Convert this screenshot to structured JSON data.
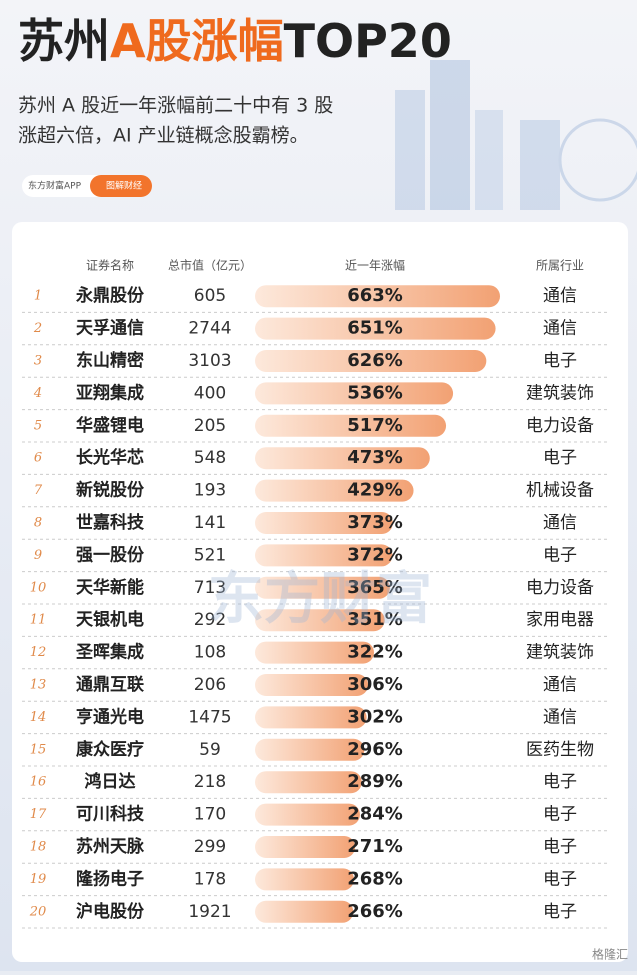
{
  "header": {
    "title": [
      "苏州",
      "A股涨幅",
      "TOP20"
    ],
    "subtitle": [
      "苏州 A 股近一年涨幅前二十中有 3 股",
      "涨超六倍，AI 产业链概念股霸榜。"
    ],
    "badges": [
      "东方财富APP",
      "图解财经"
    ]
  },
  "chart_data": {
    "type": "bar",
    "columns": [
      "证券名称",
      "总市值（亿元）",
      "近一年涨幅",
      "所属行业"
    ],
    "ranks": [
      1,
      2,
      3,
      4,
      5,
      6,
      7,
      8,
      9,
      10,
      11,
      12,
      13,
      14,
      15,
      16,
      17,
      18,
      19,
      20
    ],
    "categories": [
      "永鼎股份",
      "天孚通信",
      "东山精密",
      "亚翔集成",
      "华盛锂电",
      "长光华芯",
      "新锐股份",
      "世嘉科技",
      "强一股份",
      "天华新能",
      "天银机电",
      "圣晖集成",
      "通鼎互联",
      "亨通光电",
      "康众医疗",
      "鸿日达",
      "可川科技",
      "苏州天脉",
      "隆扬电子",
      "沪电股份"
    ],
    "market_cap": [
      605,
      2744,
      3103,
      400,
      205,
      548,
      193,
      141,
      521,
      713,
      292,
      108,
      206,
      1475,
      59,
      218,
      170,
      299,
      178,
      1921
    ],
    "values": [
      663,
      651,
      626,
      536,
      517,
      473,
      429,
      373,
      372,
      365,
      351,
      322,
      306,
      302,
      296,
      289,
      284,
      271,
      268,
      266
    ],
    "value_labels": [
      "663%",
      "651%",
      "626%",
      "536%",
      "517%",
      "473%",
      "429%",
      "373%",
      "372%",
      "365%",
      "351%",
      "322%",
      "306%",
      "302%",
      "296%",
      "289%",
      "284%",
      "271%",
      "268%",
      "266%"
    ],
    "industries": [
      "通信",
      "通信",
      "电子",
      "建筑装饰",
      "电力设备",
      "电子",
      "机械设备",
      "通信",
      "电子",
      "电力设备",
      "家用电器",
      "建筑装饰",
      "通信",
      "通信",
      "医药生物",
      "电子",
      "电子",
      "电子",
      "电子",
      "电子"
    ],
    "color": "#f4a878"
  },
  "watermark": "东方财富",
  "footer": "格隆汇"
}
